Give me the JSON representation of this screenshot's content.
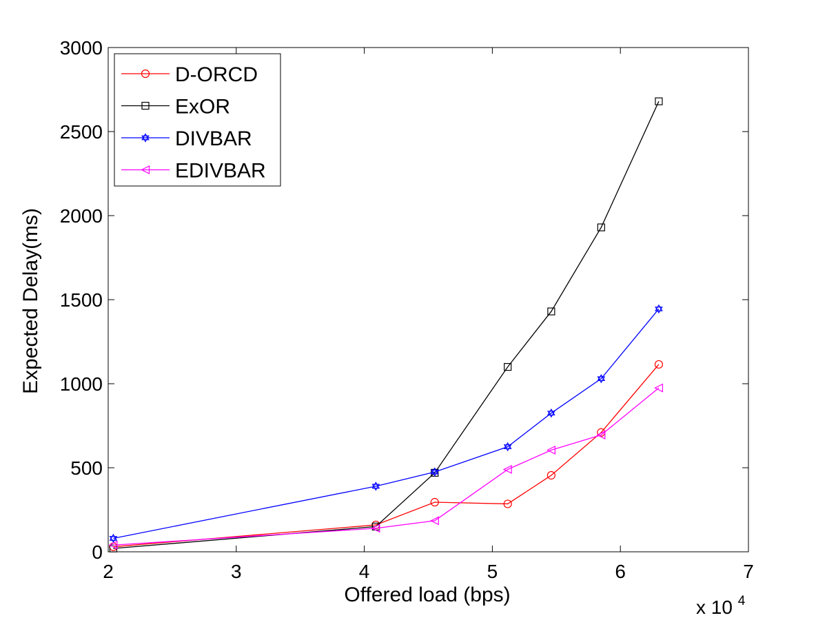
{
  "chart_data": {
    "type": "line",
    "title": "",
    "xlabel": "Offered load (bps)",
    "ylabel": "Expected Delay(ms)",
    "x_multiplier_label": "x 10",
    "x_multiplier_exp": "4",
    "xlim": [
      2,
      7
    ],
    "ylim": [
      0,
      3000
    ],
    "x_ticks": [
      2,
      3,
      4,
      5,
      6,
      7
    ],
    "y_ticks": [
      0,
      500,
      1000,
      1500,
      2000,
      2500,
      3000
    ],
    "x_tick_labels": [
      "2",
      "3",
      "4",
      "5",
      "6",
      "7"
    ],
    "y_tick_labels": [
      "0",
      "500",
      "1000",
      "1500",
      "2000",
      "2500",
      "3000"
    ],
    "grid": false,
    "legend_position": "top-left",
    "series": [
      {
        "name": "D-ORCD",
        "color": "#ff0000",
        "marker": "circle",
        "x": [
          2.04,
          4.09,
          4.55,
          5.12,
          5.46,
          5.85,
          6.3
        ],
        "values": [
          30,
          160,
          295,
          285,
          455,
          710,
          1115
        ]
      },
      {
        "name": "ExOR",
        "color": "#000000",
        "marker": "square",
        "x": [
          2.04,
          4.09,
          4.55,
          5.12,
          5.46,
          5.85,
          6.3
        ],
        "values": [
          20,
          150,
          470,
          1100,
          1430,
          1930,
          2680
        ]
      },
      {
        "name": "DIVBAR",
        "color": "#0000ff",
        "marker": "hexagram",
        "x": [
          2.04,
          4.09,
          4.55,
          5.12,
          5.46,
          5.85,
          6.3
        ],
        "values": [
          80,
          390,
          475,
          625,
          825,
          1030,
          1445
        ]
      },
      {
        "name": "EDIVBAR",
        "color": "#ff00ff",
        "marker": "triangle-left",
        "x": [
          2.04,
          4.09,
          4.55,
          5.12,
          5.46,
          5.85,
          6.3
        ],
        "values": [
          40,
          140,
          185,
          490,
          605,
          695,
          975
        ]
      }
    ]
  }
}
